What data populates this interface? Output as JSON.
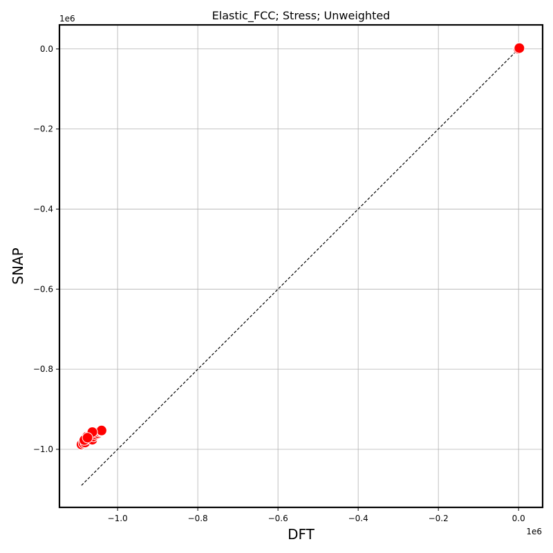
{
  "chart_data": {
    "type": "scatter",
    "title": "Elastic_FCC; Stress; Unweighted",
    "xlabel": "DFT",
    "ylabel": "SNAP",
    "x_offset_label": "1e6",
    "y_offset_label": "1e6",
    "xlim": [
      -1.145,
      0.06
    ],
    "ylim": [
      -1.145,
      0.06
    ],
    "x_ticks": [
      -1.0,
      -0.8,
      -0.6,
      -0.4,
      -0.2,
      0.0
    ],
    "y_ticks": [
      -1.0,
      -0.8,
      -0.6,
      -0.4,
      -0.2,
      0.0
    ],
    "x_tick_labels": [
      "−1.0",
      "−0.8",
      "−0.6",
      "−0.4",
      "−0.2",
      "0.0"
    ],
    "y_tick_labels": [
      "−1.0",
      "−0.8",
      "−0.6",
      "−0.4",
      "−0.2",
      "0.0"
    ],
    "grid": true,
    "reference_line": {
      "from": [
        -1.09,
        -1.09
      ],
      "to": [
        0.0,
        0.0
      ],
      "style": "dashed",
      "color": "#000000"
    },
    "marker_color": "#ff0000",
    "marker_edge_color": "#ffffff",
    "series": [
      {
        "points": [
          [
            -1.09,
            -0.988
          ],
          [
            -1.085,
            -0.985
          ],
          [
            -1.081,
            -0.983
          ],
          [
            -1.078,
            -0.975
          ],
          [
            -1.076,
            -0.968
          ],
          [
            -1.072,
            -0.97
          ],
          [
            -1.069,
            -0.965
          ],
          [
            -1.066,
            -0.962
          ],
          [
            -1.063,
            -0.976
          ],
          [
            -1.06,
            -0.968
          ],
          [
            -1.057,
            -0.96
          ],
          [
            -1.054,
            -0.963
          ],
          [
            -1.052,
            -0.958
          ],
          [
            -1.049,
            -0.96
          ],
          [
            -1.046,
            -0.956
          ],
          [
            -1.043,
            -0.954
          ],
          [
            -1.04,
            -0.953
          ],
          [
            -1.063,
            -0.957
          ],
          [
            -1.083,
            -0.977
          ],
          [
            -1.075,
            -0.971
          ],
          [
            0.0,
            0.002
          ],
          [
            -0.001,
            0.001
          ],
          [
            0.001,
            0.003
          ],
          [
            0.0,
            0.0
          ],
          [
            0.002,
            0.002
          ]
        ]
      }
    ]
  }
}
